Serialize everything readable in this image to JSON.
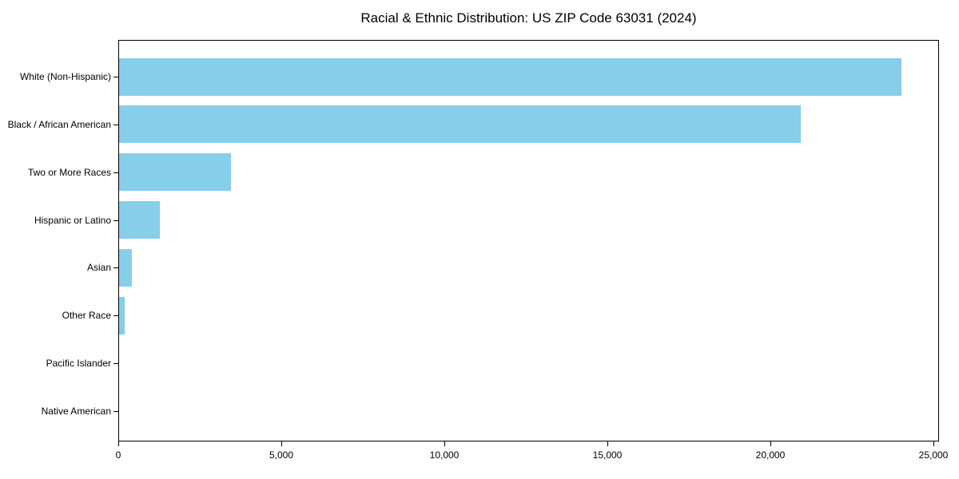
{
  "chart_data": {
    "type": "bar",
    "orientation": "horizontal",
    "title": "Racial & Ethnic Distribution: US ZIP Code 63031 (2024)",
    "categories": [
      "White (Non-Hispanic)",
      "Black / African American",
      "Two or More Races",
      "Hispanic or Latino",
      "Asian",
      "Other Race",
      "Pacific Islander",
      "Native American"
    ],
    "values": [
      24000,
      20900,
      3430,
      1250,
      400,
      170,
      0,
      0
    ],
    "xlabel": "",
    "ylabel": "",
    "xlim": [
      0,
      25000
    ],
    "xticks": [
      0,
      5000,
      10000,
      15000,
      20000,
      25000
    ],
    "xtick_labels": [
      "0",
      "5,000",
      "10,000",
      "15,000",
      "20,000",
      "25,000"
    ],
    "bar_color": "#87CEEB",
    "spine_color": "#000000",
    "grid": false,
    "legend_position": "none"
  }
}
